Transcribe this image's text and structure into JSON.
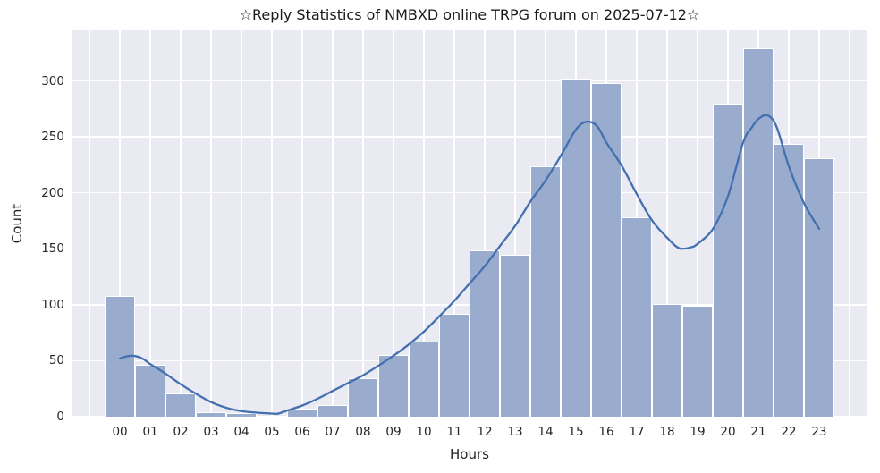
{
  "title": "☆Reply Statistics of NMBXD online TRPG forum on 2025-07-12☆",
  "chart_data": {
    "type": "bar",
    "subtype": "histogram_with_kde_line",
    "title": "☆Reply Statistics of NMBXD online TRPG forum on 2025-07-12☆",
    "xlabel": "Hours",
    "ylabel": "Count",
    "categories": [
      "00",
      "01",
      "02",
      "03",
      "04",
      "05",
      "06",
      "07",
      "08",
      "09",
      "10",
      "11",
      "12",
      "13",
      "14",
      "15",
      "16",
      "17",
      "18",
      "19",
      "20",
      "21",
      "22",
      "23"
    ],
    "values": [
      108,
      46,
      21,
      4,
      3,
      1,
      7,
      10,
      34,
      55,
      67,
      92,
      149,
      145,
      224,
      302,
      298,
      178,
      101,
      99,
      280,
      329,
      244,
      231
    ],
    "yticks": [
      0,
      50,
      100,
      150,
      200,
      250,
      300
    ],
    "ylim": [
      0,
      346
    ],
    "xlim": [
      -1.59,
      24.59
    ],
    "grid": true,
    "legend": false,
    "kde_curve": {
      "points": [
        [
          0,
          52
        ],
        [
          0.2,
          53.8
        ],
        [
          0.4,
          54.5
        ],
        [
          0.6,
          53.5
        ],
        [
          0.8,
          51
        ],
        [
          1,
          47
        ],
        [
          1.5,
          38.5
        ],
        [
          2,
          29
        ],
        [
          2.5,
          20.5
        ],
        [
          3,
          13
        ],
        [
          3.5,
          8
        ],
        [
          4,
          5
        ],
        [
          4.5,
          3.6
        ],
        [
          5,
          2.8
        ],
        [
          5.2,
          2.7
        ],
        [
          5.5,
          5.5
        ],
        [
          6,
          10
        ],
        [
          6.5,
          16
        ],
        [
          7,
          23
        ],
        [
          7.5,
          30
        ],
        [
          8,
          37
        ],
        [
          8.5,
          45.5
        ],
        [
          9,
          54.5
        ],
        [
          9.5,
          64.5
        ],
        [
          10,
          76
        ],
        [
          10.5,
          89.5
        ],
        [
          11,
          103.5
        ],
        [
          11.5,
          119
        ],
        [
          12,
          134.5
        ],
        [
          12.5,
          152.5
        ],
        [
          13,
          170.5
        ],
        [
          13.5,
          192
        ],
        [
          14,
          211
        ],
        [
          14.5,
          233
        ],
        [
          15,
          256.5
        ],
        [
          15.35,
          263.5
        ],
        [
          15.7,
          259.5
        ],
        [
          16,
          245
        ],
        [
          16.5,
          224.5
        ],
        [
          17,
          199
        ],
        [
          17.5,
          175.5
        ],
        [
          18,
          160
        ],
        [
          18.4,
          150.5
        ],
        [
          18.8,
          151.5
        ],
        [
          19,
          154.5
        ],
        [
          19.5,
          167.5
        ],
        [
          20,
          197
        ],
        [
          20.5,
          245
        ],
        [
          20.8,
          259
        ],
        [
          21,
          266
        ],
        [
          21.3,
          269.3
        ],
        [
          21.6,
          259
        ],
        [
          22,
          224
        ],
        [
          22.5,
          191
        ],
        [
          23,
          168
        ]
      ]
    }
  },
  "colors": {
    "figure_bg": "#ffffff",
    "axes_bg": "#eaeaf2",
    "grid": "#ffffff",
    "bar_fill": "#99acce",
    "bar_edge": "#ffffff",
    "kde_line": "#4470af",
    "tick_text": "#262626",
    "title_text": "#1a1a1a"
  }
}
